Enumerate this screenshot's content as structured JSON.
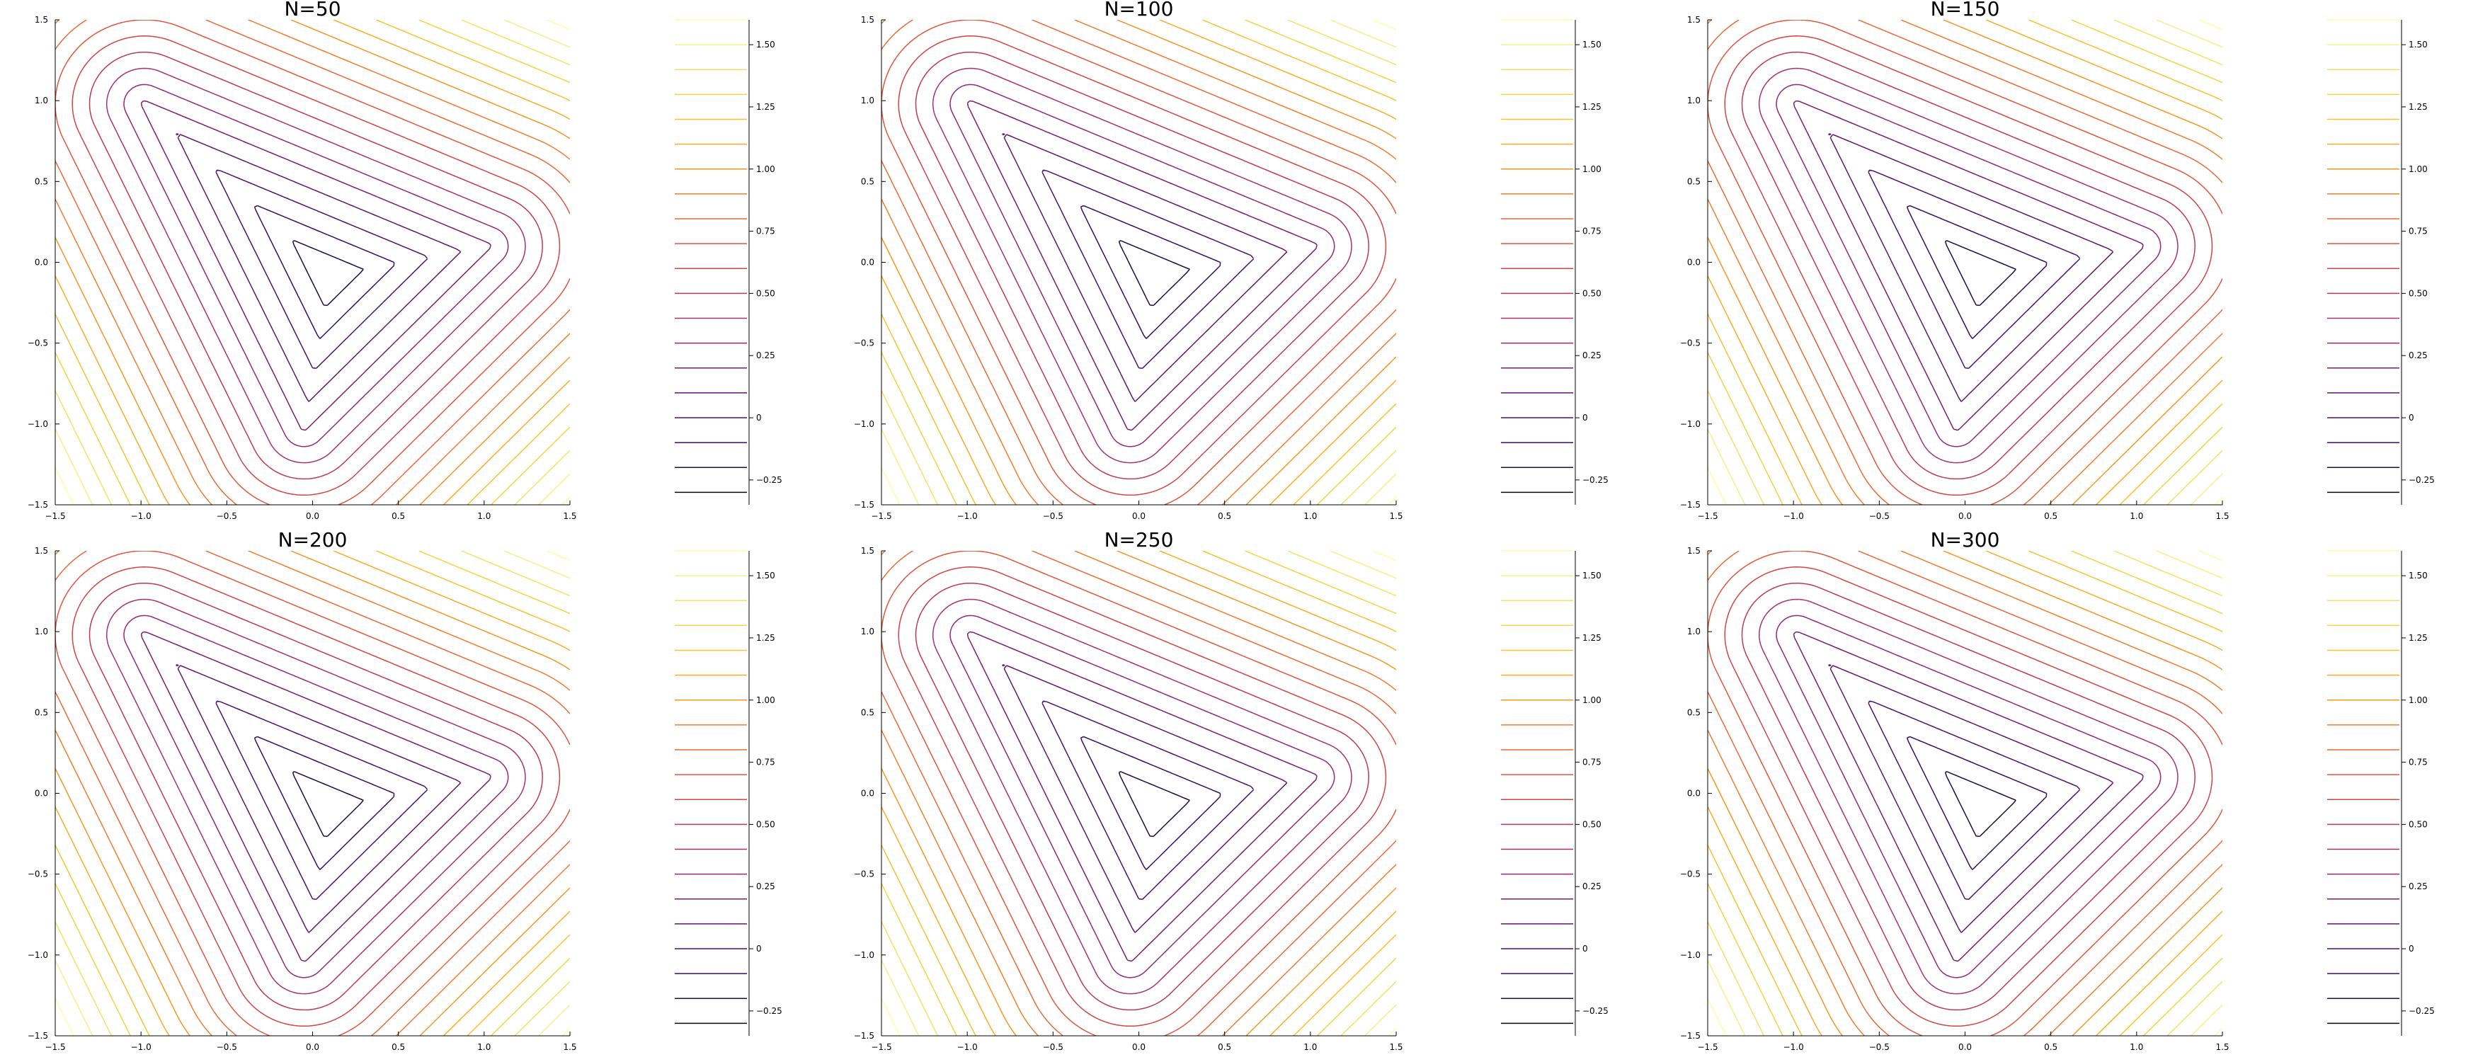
{
  "chart_data": {
    "type": "contour",
    "layout": "2x3 grid of panels",
    "grid": false,
    "colormap": [
      "#000004",
      "#1b0c41",
      "#3b0f70",
      "#5c126e",
      "#7c1d6f",
      "#9c2e7f",
      "#bc3754",
      "#d44842",
      "#e8633a",
      "#f17f2d",
      "#f8a01f",
      "#fbbf2a",
      "#f6d746",
      "#f1ec7a",
      "#fcffa4"
    ],
    "colorbar": {
      "levels_low": -0.35,
      "levels_high": 1.6,
      "line_levels": [
        -0.3,
        -0.2,
        -0.1,
        0.0,
        0.1,
        0.2,
        0.3,
        0.4,
        0.5,
        0.6,
        0.7,
        0.8,
        0.9,
        1.0,
        1.1,
        1.2,
        1.3,
        1.4,
        1.5,
        1.6
      ],
      "tick_values": [
        -0.25,
        0,
        0.25,
        0.5,
        0.75,
        1.0,
        1.25,
        1.5
      ],
      "tick_labels": [
        "−0.25",
        "0",
        "0.25",
        "0.50",
        "0.75",
        "1.00",
        "1.25",
        "1.50"
      ]
    },
    "panels": [
      {
        "title": "N=50",
        "xlim": [
          -1.5,
          1.5
        ],
        "ylim": [
          -1.5,
          1.5
        ],
        "xticks": [
          -1.5,
          -1.0,
          -0.5,
          0.0,
          0.5,
          1.0,
          1.5
        ],
        "xtick_labels": [
          "−1.5",
          "−1.0",
          "−0.5",
          "0.0",
          "0.5",
          "1.0",
          "1.5"
        ],
        "yticks": [
          -1.5,
          -1.0,
          -0.5,
          0.0,
          0.5,
          1.0,
          1.5
        ],
        "ytick_labels": [
          "−1.5",
          "−1.0",
          "−0.5",
          "0.0",
          "0.5",
          "1.0",
          "1.5"
        ],
        "contour_levels": [
          -0.3,
          -0.2,
          -0.1,
          0.0,
          0.1,
          0.2,
          0.3,
          0.4,
          0.5,
          0.6,
          0.7,
          0.8,
          0.9,
          1.0,
          1.1,
          1.2,
          1.3,
          1.4,
          1.5,
          1.6
        ]
      },
      {
        "title": "N=100",
        "xlim": [
          -1.5,
          1.5
        ],
        "ylim": [
          -1.5,
          1.5
        ],
        "xticks": [
          -1.5,
          -1.0,
          -0.5,
          0.0,
          0.5,
          1.0,
          1.5
        ],
        "xtick_labels": [
          "−1.5",
          "−1.0",
          "−0.5",
          "0.0",
          "0.5",
          "1.0",
          "1.5"
        ],
        "yticks": [
          -1.5,
          -1.0,
          -0.5,
          0.0,
          0.5,
          1.0,
          1.5
        ],
        "ytick_labels": [
          "−1.5",
          "−1.0",
          "−0.5",
          "0.0",
          "0.5",
          "1.0",
          "1.5"
        ],
        "contour_levels": [
          -0.3,
          -0.2,
          -0.1,
          0.0,
          0.1,
          0.2,
          0.3,
          0.4,
          0.5,
          0.6,
          0.7,
          0.8,
          0.9,
          1.0,
          1.1,
          1.2,
          1.3,
          1.4,
          1.5,
          1.6
        ]
      },
      {
        "title": "N=150",
        "xlim": [
          -1.5,
          1.5
        ],
        "ylim": [
          -1.5,
          1.5
        ],
        "xticks": [
          -1.5,
          -1.0,
          -0.5,
          0.0,
          0.5,
          1.0,
          1.5
        ],
        "xtick_labels": [
          "−1.5",
          "−1.0",
          "−0.5",
          "0.0",
          "0.5",
          "1.0",
          "1.5"
        ],
        "yticks": [
          -1.5,
          -1.0,
          -0.5,
          0.0,
          0.5,
          1.0,
          1.5
        ],
        "ytick_labels": [
          "−1.5",
          "−1.0",
          "−0.5",
          "0.0",
          "0.5",
          "1.0",
          "1.5"
        ],
        "contour_levels": [
          -0.3,
          -0.2,
          -0.1,
          0.0,
          0.1,
          0.2,
          0.3,
          0.4,
          0.5,
          0.6,
          0.7,
          0.8,
          0.9,
          1.0,
          1.1,
          1.2,
          1.3,
          1.4,
          1.5,
          1.6
        ]
      },
      {
        "title": "N=200",
        "xlim": [
          -1.5,
          1.5
        ],
        "ylim": [
          -1.5,
          1.5
        ],
        "xticks": [
          -1.5,
          -1.0,
          -0.5,
          0.0,
          0.5,
          1.0,
          1.5
        ],
        "xtick_labels": [
          "−1.5",
          "−1.0",
          "−0.5",
          "0.0",
          "0.5",
          "1.0",
          "1.5"
        ],
        "yticks": [
          -1.5,
          -1.0,
          -0.5,
          0.0,
          0.5,
          1.0,
          1.5
        ],
        "ytick_labels": [
          "−1.5",
          "−1.0",
          "−0.5",
          "0.0",
          "0.5",
          "1.0",
          "1.5"
        ],
        "contour_levels": [
          -0.3,
          -0.2,
          -0.1,
          0.0,
          0.1,
          0.2,
          0.3,
          0.4,
          0.5,
          0.6,
          0.7,
          0.8,
          0.9,
          1.0,
          1.1,
          1.2,
          1.3,
          1.4,
          1.5,
          1.6
        ]
      },
      {
        "title": "N=250",
        "xlim": [
          -1.5,
          1.5
        ],
        "ylim": [
          -1.5,
          1.5
        ],
        "xticks": [
          -1.5,
          -1.0,
          -0.5,
          0.0,
          0.5,
          1.0,
          1.5
        ],
        "xtick_labels": [
          "−1.5",
          "−1.0",
          "−0.5",
          "0.0",
          "0.5",
          "1.0",
          "1.5"
        ],
        "yticks": [
          -1.5,
          -1.0,
          -0.5,
          0.0,
          0.5,
          1.0,
          1.5
        ],
        "ytick_labels": [
          "−1.5",
          "−1.0",
          "−0.5",
          "0.0",
          "0.5",
          "1.0",
          "1.5"
        ],
        "contour_levels": [
          -0.3,
          -0.2,
          -0.1,
          0.0,
          0.1,
          0.2,
          0.3,
          0.4,
          0.5,
          0.6,
          0.7,
          0.8,
          0.9,
          1.0,
          1.1,
          1.2,
          1.3,
          1.4,
          1.5,
          1.6
        ]
      },
      {
        "title": "N=300",
        "xlim": [
          -1.5,
          1.5
        ],
        "ylim": [
          -1.5,
          1.5
        ],
        "xticks": [
          -1.5,
          -1.0,
          -0.5,
          0.0,
          0.5,
          1.0,
          1.5
        ],
        "xtick_labels": [
          "−1.5",
          "−1.0",
          "−0.5",
          "0.0",
          "0.5",
          "1.0",
          "1.5"
        ],
        "yticks": [
          -1.5,
          -1.0,
          -0.5,
          0.0,
          0.5,
          1.0,
          1.5
        ],
        "ytick_labels": [
          "−1.5",
          "−1.0",
          "−0.5",
          "0.0",
          "0.5",
          "1.0",
          "1.5"
        ],
        "contour_levels": [
          -0.3,
          -0.2,
          -0.1,
          0.0,
          0.1,
          0.2,
          0.3,
          0.4,
          0.5,
          0.6,
          0.7,
          0.8,
          0.9,
          1.0,
          1.1,
          1.2,
          1.3,
          1.4,
          1.5,
          1.6
        ]
      }
    ]
  }
}
